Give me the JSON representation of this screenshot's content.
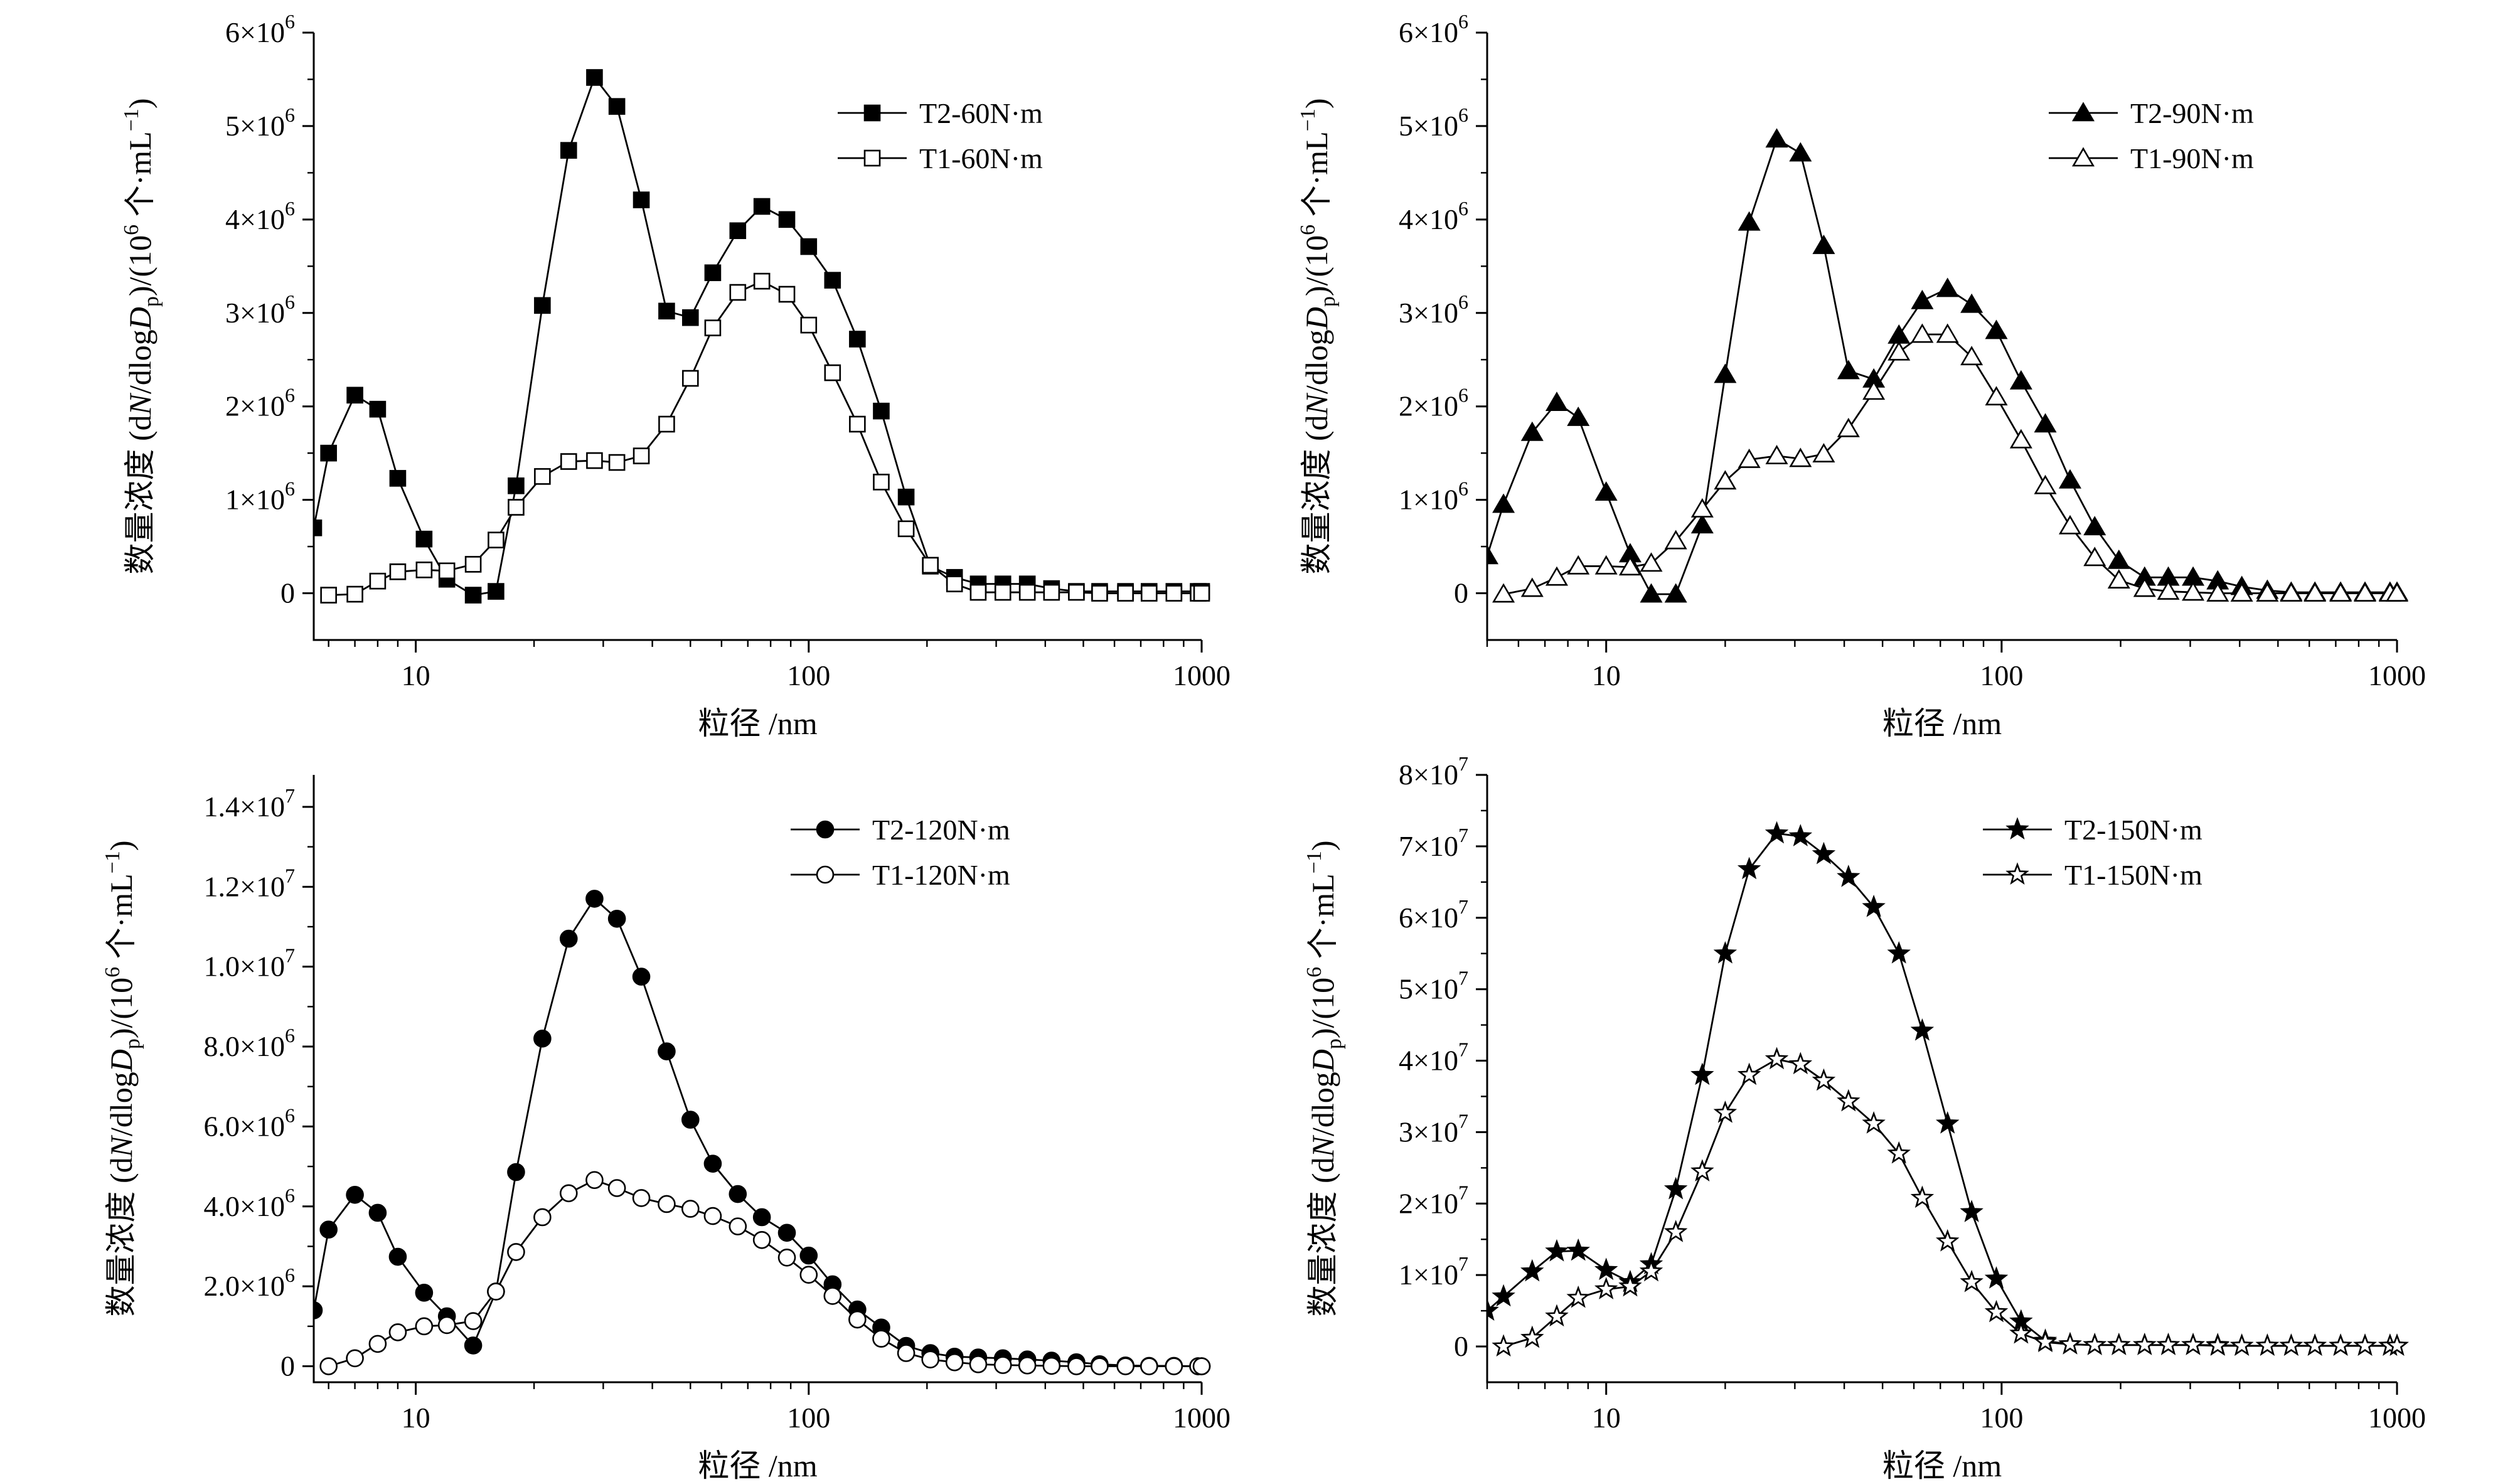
{
  "figure": {
    "xlabel": "粒径 /nm",
    "ylabel_parts": [
      "数量浓度 (d",
      "N",
      "/dlog",
      "D",
      "p",
      ")/(10",
      "6",
      " 个·mL",
      "−1",
      ")"
    ],
    "x_tick_labels": [
      "10",
      "100",
      "1000"
    ]
  },
  "chart_data": [
    {
      "type": "line",
      "xscale": "log",
      "xlim": [
        5.5,
        1000
      ],
      "ylim": [
        -500000,
        6000000
      ],
      "xlabel": "粒径 /nm",
      "ylabel": "数量浓度 (dN/dlogDp)/(10^6 个·mL^-1)",
      "y_ticks": [
        0,
        1000000,
        2000000,
        3000000,
        4000000,
        5000000,
        6000000
      ],
      "y_tick_labels": [
        {
          "mant": "0",
          "exp": ""
        },
        {
          "mant": "1×10",
          "exp": "6"
        },
        {
          "mant": "2×10",
          "exp": "6"
        },
        {
          "mant": "3×10",
          "exp": "6"
        },
        {
          "mant": "4×10",
          "exp": "6"
        },
        {
          "mant": "5×10",
          "exp": "6"
        },
        {
          "mant": "6×10",
          "exp": "6"
        }
      ],
      "legend_position": "top-right",
      "series": [
        {
          "name": "T2-60N·m",
          "marker": "square",
          "filled": true,
          "x": [
            5.5,
            6.0,
            7.0,
            8.0,
            9.0,
            10.5,
            12.0,
            14.0,
            16.0,
            18.0,
            21.0,
            24.5,
            28.5,
            32.5,
            37.5,
            43.5,
            50.0,
            57.0,
            66.0,
            76.0,
            88.0,
            100,
            115,
            133,
            153,
            177,
            204,
            235,
            270,
            312,
            360,
            415,
            480,
            550,
            640,
            735,
            850,
            980,
            1000
          ],
          "y": [
            700000,
            1500000,
            2120000,
            1970000,
            1230000,
            580000,
            150000,
            -20000,
            20000,
            1150000,
            3080000,
            4740000,
            5520000,
            5210000,
            4210000,
            3020000,
            2950000,
            3430000,
            3880000,
            4140000,
            4000000,
            3710000,
            3350000,
            2720000,
            1950000,
            1030000,
            290000,
            170000,
            100000,
            100000,
            100000,
            50000,
            20000,
            20000,
            20000,
            20000,
            20000,
            20000,
            20000
          ]
        },
        {
          "name": "T1-60N·m",
          "marker": "square",
          "filled": false,
          "x": [
            6.0,
            7.0,
            8.0,
            9.0,
            10.5,
            12.0,
            14.0,
            16.0,
            18.0,
            21.0,
            24.5,
            28.5,
            32.5,
            37.5,
            43.5,
            50.0,
            57.0,
            66.0,
            76.0,
            88.0,
            100,
            115,
            133,
            153,
            177,
            204,
            235,
            270,
            312,
            360,
            415,
            480,
            550,
            640,
            735,
            850,
            980,
            1000
          ],
          "y": [
            -20000,
            -10000,
            130000,
            230000,
            250000,
            240000,
            310000,
            570000,
            920000,
            1250000,
            1410000,
            1420000,
            1400000,
            1470000,
            1810000,
            2300000,
            2840000,
            3220000,
            3340000,
            3200000,
            2870000,
            2360000,
            1810000,
            1190000,
            690000,
            300000,
            100000,
            10000,
            10000,
            10000,
            10000,
            10000,
            0,
            0,
            0,
            0,
            0,
            0
          ]
        }
      ]
    },
    {
      "type": "line",
      "xscale": "log",
      "xlim": [
        5,
        1000
      ],
      "ylim": [
        -500000,
        6000000
      ],
      "xlabel": "粒径 /nm",
      "ylabel": "数量浓度 (dN/dlogDp)/(10^6 个·mL^-1)",
      "y_ticks": [
        0,
        1000000,
        2000000,
        3000000,
        4000000,
        5000000,
        6000000
      ],
      "y_tick_labels": [
        {
          "mant": "0",
          "exp": ""
        },
        {
          "mant": "1×10",
          "exp": "6"
        },
        {
          "mant": "2×10",
          "exp": "6"
        },
        {
          "mant": "3×10",
          "exp": "6"
        },
        {
          "mant": "4×10",
          "exp": "6"
        },
        {
          "mant": "5×10",
          "exp": "6"
        },
        {
          "mant": "6×10",
          "exp": "6"
        }
      ],
      "legend_position": "top-right",
      "series": [
        {
          "name": "T2-90N·m",
          "marker": "triangle",
          "filled": true,
          "x": [
            5.0,
            5.5,
            6.5,
            7.5,
            8.5,
            10.0,
            11.5,
            13.0,
            15.0,
            17.5,
            20.0,
            23.0,
            27.0,
            31.0,
            35.5,
            41.0,
            47.5,
            55.0,
            63.0,
            73.0,
            84.0,
            97.0,
            112,
            129,
            149,
            172,
            198,
            230,
            264,
            305,
            352,
            405,
            470,
            540,
            620,
            720,
            830,
            960,
            1000
          ],
          "y": [
            400000,
            950000,
            1720000,
            2040000,
            1880000,
            1080000,
            420000,
            -10000,
            -10000,
            730000,
            2340000,
            3970000,
            4860000,
            4710000,
            3720000,
            2380000,
            2290000,
            2760000,
            3130000,
            3260000,
            3090000,
            2810000,
            2270000,
            1810000,
            1210000,
            710000,
            350000,
            170000,
            170000,
            170000,
            130000,
            70000,
            30000,
            10000,
            10000,
            10000,
            10000,
            10000,
            10000
          ]
        },
        {
          "name": "T1-90N·m",
          "marker": "triangle",
          "filled": false,
          "x": [
            5.5,
            6.5,
            7.5,
            8.5,
            10.0,
            11.5,
            13.0,
            15.0,
            17.5,
            20.0,
            23.0,
            27.0,
            31.0,
            35.5,
            41.0,
            47.5,
            55.0,
            63.0,
            73.0,
            84.0,
            97.0,
            112,
            129,
            149,
            172,
            198,
            230,
            264,
            305,
            352,
            405,
            470,
            540,
            620,
            720,
            830,
            960,
            1000
          ],
          "y": [
            -10000,
            50000,
            170000,
            290000,
            290000,
            280000,
            320000,
            560000,
            900000,
            1200000,
            1430000,
            1470000,
            1440000,
            1490000,
            1760000,
            2160000,
            2580000,
            2770000,
            2770000,
            2530000,
            2100000,
            1640000,
            1150000,
            720000,
            380000,
            140000,
            50000,
            20000,
            10000,
            0,
            0,
            0,
            0,
            0,
            0,
            0,
            0,
            0
          ]
        }
      ]
    },
    {
      "type": "line",
      "xscale": "log",
      "xlim": [
        5.5,
        1000
      ],
      "ylim": [
        -400000,
        14800000
      ],
      "xlabel": "粒径 /nm",
      "ylabel": "数量浓度 (dN/dlogDp)/(10^6 个·mL^-1)",
      "y_ticks": [
        0,
        2000000,
        4000000,
        6000000,
        8000000,
        10000000,
        12000000,
        14000000
      ],
      "y_tick_labels": [
        {
          "mant": "0",
          "exp": ""
        },
        {
          "mant": "2.0×10",
          "exp": "6"
        },
        {
          "mant": "4.0×10",
          "exp": "6"
        },
        {
          "mant": "6.0×10",
          "exp": "6"
        },
        {
          "mant": "8.0×10",
          "exp": "6"
        },
        {
          "mant": "1.0×10",
          "exp": "7"
        },
        {
          "mant": "1.2×10",
          "exp": "7"
        },
        {
          "mant": "1.4×10",
          "exp": "7"
        }
      ],
      "legend_position": "top-right",
      "series": [
        {
          "name": "T2-120N·m",
          "marker": "circle",
          "filled": true,
          "x": [
            5.5,
            6.0,
            7.0,
            8.0,
            9.0,
            10.5,
            12.0,
            14.0,
            16.0,
            18.0,
            21.0,
            24.5,
            28.5,
            32.5,
            37.5,
            43.5,
            50.0,
            57.0,
            66.0,
            76.0,
            88.0,
            100,
            115,
            133,
            153,
            177,
            204,
            235,
            270,
            312,
            360,
            415,
            480,
            550,
            640,
            735,
            850,
            980,
            1000
          ],
          "y": [
            1400000,
            3420000,
            4290000,
            3840000,
            2740000,
            1840000,
            1250000,
            520000,
            1870000,
            4860000,
            8200000,
            10700000,
            11700000,
            11200000,
            9750000,
            7880000,
            6170000,
            5070000,
            4310000,
            3730000,
            3340000,
            2770000,
            2050000,
            1420000,
            970000,
            510000,
            330000,
            240000,
            220000,
            200000,
            170000,
            140000,
            100000,
            50000,
            20000,
            10000,
            10000,
            0,
            0
          ]
        },
        {
          "name": "T1-120N·m",
          "marker": "circle",
          "filled": false,
          "x": [
            6.0,
            7.0,
            8.0,
            9.0,
            10.5,
            12.0,
            14.0,
            16.0,
            18.0,
            21.0,
            24.5,
            28.5,
            32.5,
            37.5,
            43.5,
            50.0,
            57.0,
            66.0,
            76.0,
            88.0,
            100,
            115,
            133,
            153,
            177,
            204,
            235,
            270,
            312,
            360,
            415,
            480,
            550,
            640,
            735,
            850,
            980,
            1000
          ],
          "y": [
            0,
            200000,
            560000,
            850000,
            1000000,
            1030000,
            1130000,
            1870000,
            2860000,
            3730000,
            4330000,
            4660000,
            4460000,
            4210000,
            4060000,
            3940000,
            3760000,
            3500000,
            3160000,
            2720000,
            2290000,
            1760000,
            1170000,
            690000,
            330000,
            170000,
            100000,
            50000,
            30000,
            20000,
            10000,
            0,
            0,
            0,
            0,
            0,
            0,
            0
          ]
        }
      ]
    },
    {
      "type": "line",
      "xscale": "log",
      "xlim": [
        5,
        1000
      ],
      "ylim": [
        -5000000,
        80000000
      ],
      "xlabel": "粒径 /nm",
      "ylabel": "数量浓度 (dN/dlogDp)/(10^6 个·mL^-1)",
      "y_ticks": [
        0,
        10000000,
        20000000,
        30000000,
        40000000,
        50000000,
        60000000,
        70000000,
        80000000
      ],
      "y_tick_labels": [
        {
          "mant": "0",
          "exp": ""
        },
        {
          "mant": "1×10",
          "exp": "7"
        },
        {
          "mant": "2×10",
          "exp": "7"
        },
        {
          "mant": "3×10",
          "exp": "7"
        },
        {
          "mant": "4×10",
          "exp": "7"
        },
        {
          "mant": "5×10",
          "exp": "7"
        },
        {
          "mant": "6×10",
          "exp": "7"
        },
        {
          "mant": "7×10",
          "exp": "7"
        },
        {
          "mant": "8×10",
          "exp": "7"
        }
      ],
      "legend_position": "top-right",
      "series": [
        {
          "name": "T2-150N·m",
          "marker": "star",
          "filled": true,
          "x": [
            5.0,
            5.5,
            6.5,
            7.5,
            8.5,
            10.0,
            11.5,
            13.0,
            15.0,
            17.5,
            20.0,
            23.0,
            27.0,
            31.0,
            35.5,
            41.0,
            47.5,
            55.0,
            63.0,
            73.0,
            84.0,
            97.0,
            112,
            129,
            149,
            172,
            198,
            230,
            264,
            305,
            352,
            405,
            470,
            540,
            620,
            720,
            830,
            960,
            1000
          ],
          "y": [
            5000000,
            7000000,
            10500000,
            13300000,
            13400000,
            10700000,
            9000000,
            11500000,
            22000000,
            38000000,
            55000000,
            66800000,
            71800000,
            71400000,
            68900000,
            65700000,
            61500000,
            55000000,
            44200000,
            31200000,
            18800000,
            9500000,
            3500000,
            800000,
            300000,
            200000,
            200000,
            200000,
            200000,
            200000,
            200000,
            100000,
            100000,
            100000,
            100000,
            100000,
            100000,
            100000,
            100000
          ]
        },
        {
          "name": "T1-150N·m",
          "marker": "star",
          "filled": false,
          "x": [
            5.5,
            6.5,
            7.5,
            8.5,
            10.0,
            11.5,
            13.0,
            15.0,
            17.5,
            20.0,
            23.0,
            27.0,
            31.0,
            35.5,
            41.0,
            47.5,
            55.0,
            63.0,
            73.0,
            84.0,
            97.0,
            112,
            129,
            149,
            172,
            198,
            230,
            264,
            305,
            352,
            405,
            470,
            540,
            620,
            720,
            830,
            960,
            1000
          ],
          "y": [
            0,
            1200000,
            4200000,
            6800000,
            8000000,
            8400000,
            10500000,
            16000000,
            24500000,
            32700000,
            38000000,
            40200000,
            39500000,
            37200000,
            34300000,
            31200000,
            27000000,
            20800000,
            14700000,
            9000000,
            4800000,
            1800000,
            600000,
            300000,
            200000,
            200000,
            200000,
            200000,
            200000,
            100000,
            100000,
            100000,
            100000,
            100000,
            100000,
            100000,
            100000,
            100000
          ]
        }
      ]
    }
  ]
}
